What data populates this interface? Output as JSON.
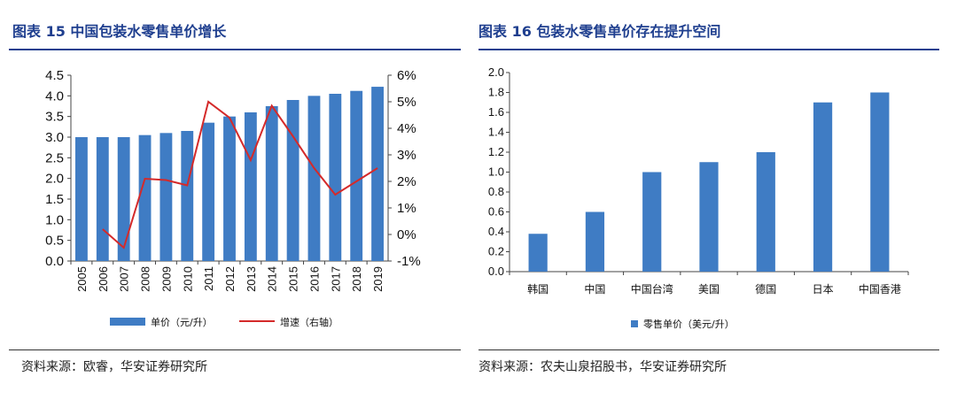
{
  "left": {
    "title": "图表 15 中国包装水零售单价增长",
    "source": "资料来源：欧睿，华安证券研究所",
    "chart_data": {
      "type": "bar+line",
      "categories": [
        "2005",
        "2006",
        "2007",
        "2008",
        "2009",
        "2010",
        "2011",
        "2012",
        "2013",
        "2014",
        "2015",
        "2016",
        "2017",
        "2018",
        "2019"
      ],
      "series": [
        {
          "name": "单价（元/升）",
          "type": "bar",
          "axis": "left",
          "color": "#3f7cc4",
          "values": [
            3.0,
            3.0,
            3.0,
            3.05,
            3.1,
            3.15,
            3.35,
            3.5,
            3.6,
            3.75,
            3.9,
            4.0,
            4.05,
            4.12,
            4.22
          ]
        },
        {
          "name": "增速（右轴）",
          "type": "line",
          "axis": "right",
          "color": "#d42a2a",
          "values": [
            null,
            0.2,
            -0.5,
            2.1,
            2.05,
            1.85,
            5.0,
            4.4,
            2.8,
            4.85,
            3.7,
            2.5,
            1.5,
            2.0,
            2.5
          ]
        }
      ],
      "yleft": {
        "lim": [
          0,
          4.5
        ],
        "ticks": [
          "0.0",
          "0.5",
          "1.0",
          "1.5",
          "2.0",
          "2.5",
          "3.0",
          "3.5",
          "4.0",
          "4.5"
        ]
      },
      "yright": {
        "lim": [
          -1,
          6
        ],
        "ticks": [
          "-1%",
          "0%",
          "1%",
          "2%",
          "3%",
          "4%",
          "5%",
          "6%"
        ]
      },
      "legend_position": "bottom"
    }
  },
  "right": {
    "title": "图表 16 包装水零售单价存在提升空间",
    "source": "资料来源：农夫山泉招股书，华安证券研究所",
    "chart_data": {
      "type": "bar",
      "categories": [
        "韩国",
        "中国",
        "中国台湾",
        "美国",
        "德国",
        "日本",
        "中国香港"
      ],
      "series": [
        {
          "name": "零售单价（美元/升）",
          "color": "#3f7cc4",
          "values": [
            0.38,
            0.6,
            1.0,
            1.1,
            1.2,
            1.7,
            1.8
          ]
        }
      ],
      "ylim": [
        0,
        2.0
      ],
      "yticks": [
        "0.0",
        "0.2",
        "0.4",
        "0.6",
        "0.8",
        "1.0",
        "1.2",
        "1.4",
        "1.6",
        "1.8",
        "2.0"
      ],
      "legend_position": "bottom"
    }
  }
}
